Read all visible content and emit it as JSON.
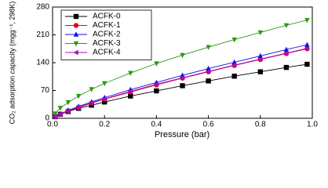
{
  "chart_data": {
    "type": "line",
    "xlabel": "Pressure (bar)",
    "ylabel": "CO₂ adsorption capacity (mgg⁻¹, 298K)",
    "x": [
      0.01,
      0.03,
      0.06,
      0.1,
      0.15,
      0.2,
      0.3,
      0.4,
      0.5,
      0.6,
      0.7,
      0.8,
      0.9,
      0.98
    ],
    "series": [
      {
        "name": "ACFK-0",
        "color": "#000000",
        "marker": "square",
        "values": [
          4,
          10,
          17,
          25,
          33,
          41,
          56,
          69,
          82,
          94,
          106,
          117,
          128,
          136
        ]
      },
      {
        "name": "ACFK-1",
        "color": "#e8002a",
        "marker": "circle",
        "values": [
          4,
          10,
          18,
          27,
          38,
          48,
          66,
          84,
          101,
          117,
          133,
          148,
          163,
          175
        ]
      },
      {
        "name": "ACFK-2",
        "color": "#1010e0",
        "marker": "triangle-up",
        "values": [
          5,
          11,
          20,
          30,
          41,
          52,
          72,
          90,
          108,
          125,
          141,
          157,
          173,
          185
        ]
      },
      {
        "name": "ACFK-3",
        "color": "#2a9a10",
        "marker": "triangle-down",
        "values": [
          12,
          26,
          40,
          56,
          73,
          88,
          114,
          138,
          159,
          179,
          198,
          216,
          234,
          247
        ]
      },
      {
        "name": "ACFK-4",
        "color": "#a010c0",
        "marker": "triangle-left",
        "values": [
          4,
          10,
          19,
          28,
          39,
          49,
          68,
          86,
          102,
          118,
          134,
          149,
          164,
          176
        ]
      }
    ],
    "xlim": [
      0,
      1
    ],
    "xticks": [
      {
        "value": 0,
        "label": "0.0"
      },
      0.2,
      0.4,
      0.6,
      0.8,
      {
        "value": 1,
        "label": "1.0"
      }
    ],
    "ylim": [
      0,
      280
    ],
    "yticks": [
      0,
      70,
      140,
      210,
      280
    ],
    "grid": false,
    "legend": "upper left"
  }
}
